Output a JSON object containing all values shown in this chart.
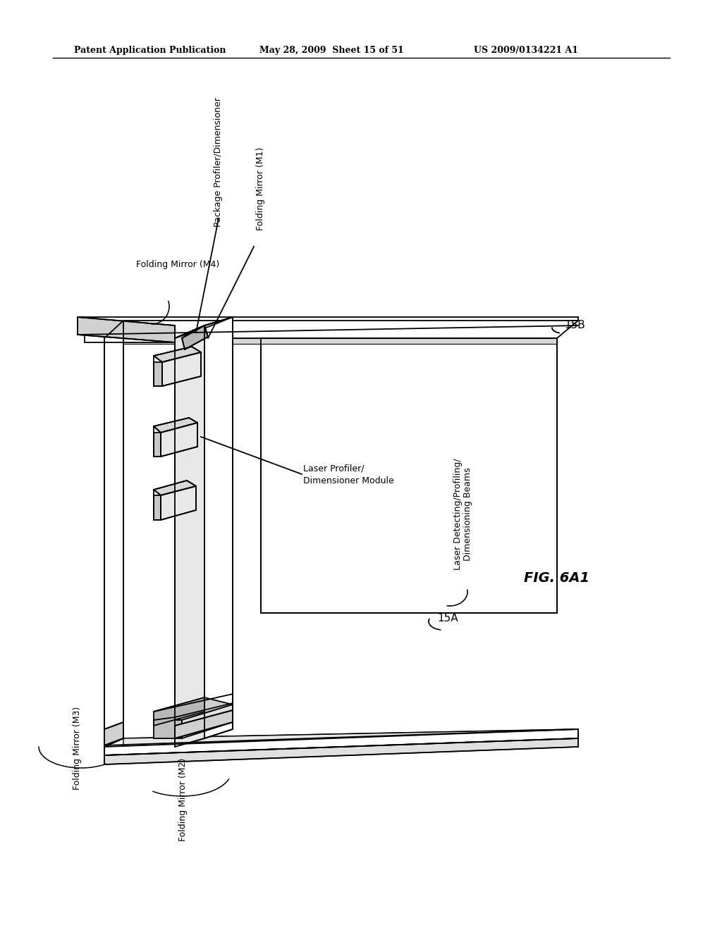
{
  "title_left": "Patent Application Publication",
  "title_mid": "May 28, 2009  Sheet 15 of 51",
  "title_right": "US 2009/0134221 A1",
  "fig_label": "FIG. 6A1",
  "background_color": "#ffffff",
  "line_color": "#000000",
  "labels": {
    "folding_m4": "Folding Mirror (M4)",
    "package_profiler": "Package Profiler/Dimensioner",
    "folding_m1": "Folding Mirror (M1)",
    "laser_profiler_1": "Laser Profiler/",
    "laser_profiler_2": "Dimensioner Module",
    "folding_m3": "Folding Mirror (M3)",
    "folding_m2": "Folding Mirror (M2)",
    "laser_detecting_1": "Laser Detecting/Profiling/",
    "laser_detecting_2": "Dimensioning Beams",
    "ref_15a": "15A",
    "ref_15b": "15B"
  }
}
